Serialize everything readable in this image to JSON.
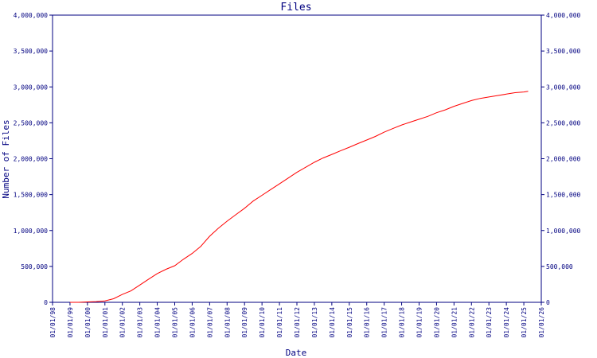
{
  "chart_data": {
    "type": "line",
    "title": "Files",
    "xlabel": "Date",
    "ylabel": "Number of Files",
    "x_ticks": [
      "01/01/98",
      "01/01/99",
      "01/01/00",
      "01/01/01",
      "01/01/02",
      "01/01/03",
      "01/01/04",
      "01/01/05",
      "01/01/06",
      "01/01/07",
      "01/01/08",
      "01/01/09",
      "01/01/10",
      "01/01/11",
      "01/01/12",
      "01/01/13",
      "01/01/14",
      "01/01/15",
      "01/01/16",
      "01/01/17",
      "01/01/18",
      "01/01/19",
      "01/01/20",
      "01/01/21",
      "01/01/22",
      "01/01/23",
      "01/01/24",
      "01/01/25",
      "01/01/26"
    ],
    "y_ticks": [
      "0",
      "500,000",
      "1,000,000",
      "1,500,000",
      "2,000,000",
      "2,500,000",
      "3,000,000",
      "3,500,000",
      "4,000,000"
    ],
    "y_tick_values": [
      0,
      500000,
      1000000,
      1500000,
      2000000,
      2500000,
      3000000,
      3500000,
      4000000
    ],
    "xlim": [
      "1998-01-01",
      "2026-01-01"
    ],
    "ylim": [
      0,
      4000000
    ],
    "grid": false,
    "series": [
      {
        "color": "#ff0000",
        "x": [
          "1999-01-01",
          "1999-07-01",
          "2000-01-01",
          "2000-07-01",
          "2001-01-01",
          "2001-07-01",
          "2002-01-01",
          "2002-07-01",
          "2003-01-01",
          "2003-07-01",
          "2004-01-01",
          "2004-07-01",
          "2005-01-01",
          "2005-07-01",
          "2006-01-01",
          "2006-07-01",
          "2007-01-01",
          "2007-07-01",
          "2008-01-01",
          "2008-07-01",
          "2009-01-01",
          "2009-07-01",
          "2010-01-01",
          "2010-07-01",
          "2011-01-01",
          "2011-07-01",
          "2012-01-01",
          "2012-07-01",
          "2013-01-01",
          "2013-07-01",
          "2014-01-01",
          "2014-07-01",
          "2015-01-01",
          "2015-07-01",
          "2016-01-01",
          "2016-07-01",
          "2017-01-01",
          "2017-07-01",
          "2018-01-01",
          "2018-07-01",
          "2019-01-01",
          "2019-07-01",
          "2020-01-01",
          "2020-07-01",
          "2021-01-01",
          "2021-07-01",
          "2022-01-01",
          "2022-07-01",
          "2023-01-01",
          "2023-07-01",
          "2024-01-01",
          "2024-07-01",
          "2025-01-01",
          "2025-04-01"
        ],
        "values": [
          0,
          0,
          5000,
          10000,
          20000,
          50000,
          110000,
          160000,
          240000,
          320000,
          400000,
          460000,
          510000,
          600000,
          680000,
          780000,
          920000,
          1030000,
          1130000,
          1220000,
          1310000,
          1410000,
          1490000,
          1570000,
          1650000,
          1730000,
          1810000,
          1880000,
          1950000,
          2010000,
          2060000,
          2110000,
          2160000,
          2210000,
          2260000,
          2310000,
          2370000,
          2420000,
          2470000,
          2510000,
          2550000,
          2590000,
          2640000,
          2680000,
          2730000,
          2770000,
          2810000,
          2840000,
          2860000,
          2880000,
          2900000,
          2920000,
          2930000,
          2940000
        ]
      }
    ]
  }
}
